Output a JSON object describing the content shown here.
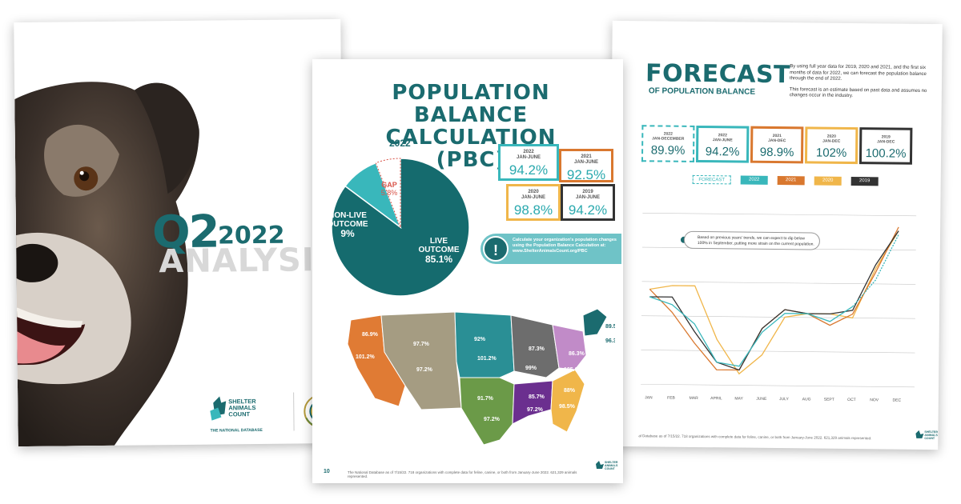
{
  "cover": {
    "q2": "Q2",
    "year": "2022",
    "analysis": "ANALYSIS",
    "logo_text": "SHELTER ANIMALS COUNT",
    "logo_sub": "THE NATIONAL DATABASE"
  },
  "pbc": {
    "title_line1": "POPULATION BALANCE",
    "title_line2": "CALCULATION (PBC)",
    "pie_year": "2022",
    "pie": [
      {
        "label_1": "LIVE",
        "label_2": "OUTCOME",
        "value_label": "85.1%",
        "value": 85.1,
        "color": "#156b6e"
      },
      {
        "label_1": "NON-LIVE",
        "label_2": "OUTCOME",
        "value_label": "9%",
        "value": 9,
        "color": "#39b7bb"
      },
      {
        "label_1": "GAP",
        "label_2": "",
        "value_label": "5.8%",
        "value": 5.8,
        "color": "#ffffff"
      }
    ],
    "boxes": [
      {
        "period_1": "2022",
        "period_2": "JAN-JUNE",
        "value": "94.2%",
        "color": "#39b7bb"
      },
      {
        "period_1": "2021",
        "period_2": "JAN-JUNE",
        "value": "92.5%",
        "color": "#d9782f"
      },
      {
        "period_1": "2020",
        "period_2": "JAN-JUNE",
        "value": "98.8%",
        "color": "#f0b64a"
      },
      {
        "period_1": "2019",
        "period_2": "JAN-JUNE",
        "value": "94.2%",
        "color": "#333333"
      }
    ],
    "calc_text_1": "Calculate your organization's population changes",
    "calc_text_2": "using the Population Balance Calculation at:",
    "calc_url": "www.ShelterAnimalsCount.org/PBC",
    "map_values": [
      "86.9%",
      "101.2%",
      "97.7%",
      "97.2%",
      "92%",
      "101.2%",
      "91.7%",
      "97.2%",
      "87.3%",
      "99%",
      "86.3%",
      "105.6%",
      "88%",
      "98.5%",
      "85.7%",
      "97.2%",
      "89.5%",
      "96.3%"
    ],
    "page_number": "10",
    "footnote": "The National Database as of 7/15/22. 718 organizations with complete data for feline, canine, or both from January-June 2022. 621,329 animals represented.",
    "footer_logo": "SHELTER ANIMALS COUNT"
  },
  "forecast": {
    "title": "FORECAST",
    "subtitle": "OF POPULATION BALANCE",
    "para_1": "By using full year data for 2019, 2020 and 2021, and the first six months of data for 2022, we can forecast the population balance through the end of 2022.",
    "para_2": "This forecast is an estimate based on past data and assumes no changes occur in the industry.",
    "boxes": [
      {
        "period_1": "2022",
        "period_2": "JAN-DECEMBER",
        "value": "89.9%",
        "color": "#39b7bb"
      },
      {
        "period_1": "2022",
        "period_2": "JAN-JUNE",
        "value": "94.2%",
        "color": "#39b7bb"
      },
      {
        "period_1": "2021",
        "period_2": "JAN-DEC",
        "value": "98.9%",
        "color": "#d9782f"
      },
      {
        "period_1": "2020",
        "period_2": "JAN-DEC",
        "value": "102%",
        "color": "#f0b64a"
      },
      {
        "period_1": "2019",
        "period_2": "JAN-DEC",
        "value": "100.2%",
        "color": "#333333"
      }
    ],
    "legend": [
      {
        "label": "FORECAST",
        "color": "#39b7bb"
      },
      {
        "label": "2022",
        "color": "#39b7bb"
      },
      {
        "label": "2021",
        "color": "#d9782f"
      },
      {
        "label": "2020",
        "color": "#f0b64a"
      },
      {
        "label": "2019",
        "color": "#333333"
      }
    ],
    "note": "Based on previous years' trends, we can expect to dip below 100% in September, putting more strain on the current population.",
    "footnote": "al Database as of 7/15/22. 718 organizations with complete data for feline, canine, or both from January-June 2022. 621,329 animals represented.",
    "footer_logo": "SHELTER ANIMALS COUNT"
  },
  "chart_data": {
    "type": "line",
    "categories": [
      "JAN",
      "FEB",
      "MAR",
      "APRIL",
      "MAY",
      "JUNE",
      "JULY",
      "AUG",
      "SEPT",
      "OCT",
      "NOV",
      "DEC"
    ],
    "series": [
      {
        "name": "2022",
        "values": [
          108,
          106,
          101,
          91,
          90,
          99,
          104,
          104,
          102,
          106,
          null,
          null
        ],
        "color": "#39b7bb"
      },
      {
        "name": "FORECAST",
        "values": [
          null,
          null,
          null,
          null,
          null,
          null,
          null,
          null,
          null,
          106,
          113,
          125
        ],
        "color": "#39b7bb",
        "dashed": true
      },
      {
        "name": "2021",
        "values": [
          110,
          104,
          96,
          89,
          89,
          100,
          105,
          104,
          101,
          104,
          115,
          127
        ],
        "color": "#d9782f"
      },
      {
        "name": "2020",
        "values": [
          110,
          111,
          111,
          97,
          88,
          93,
          103,
          104,
          104,
          103,
          116,
          126
        ],
        "color": "#f0b64a"
      },
      {
        "name": "2019",
        "values": [
          108,
          108,
          99,
          91,
          89,
          100,
          105,
          104,
          104,
          105,
          117,
          126
        ],
        "color": "#333333"
      }
    ],
    "ylim": [
      85,
      130
    ],
    "grid": true
  }
}
